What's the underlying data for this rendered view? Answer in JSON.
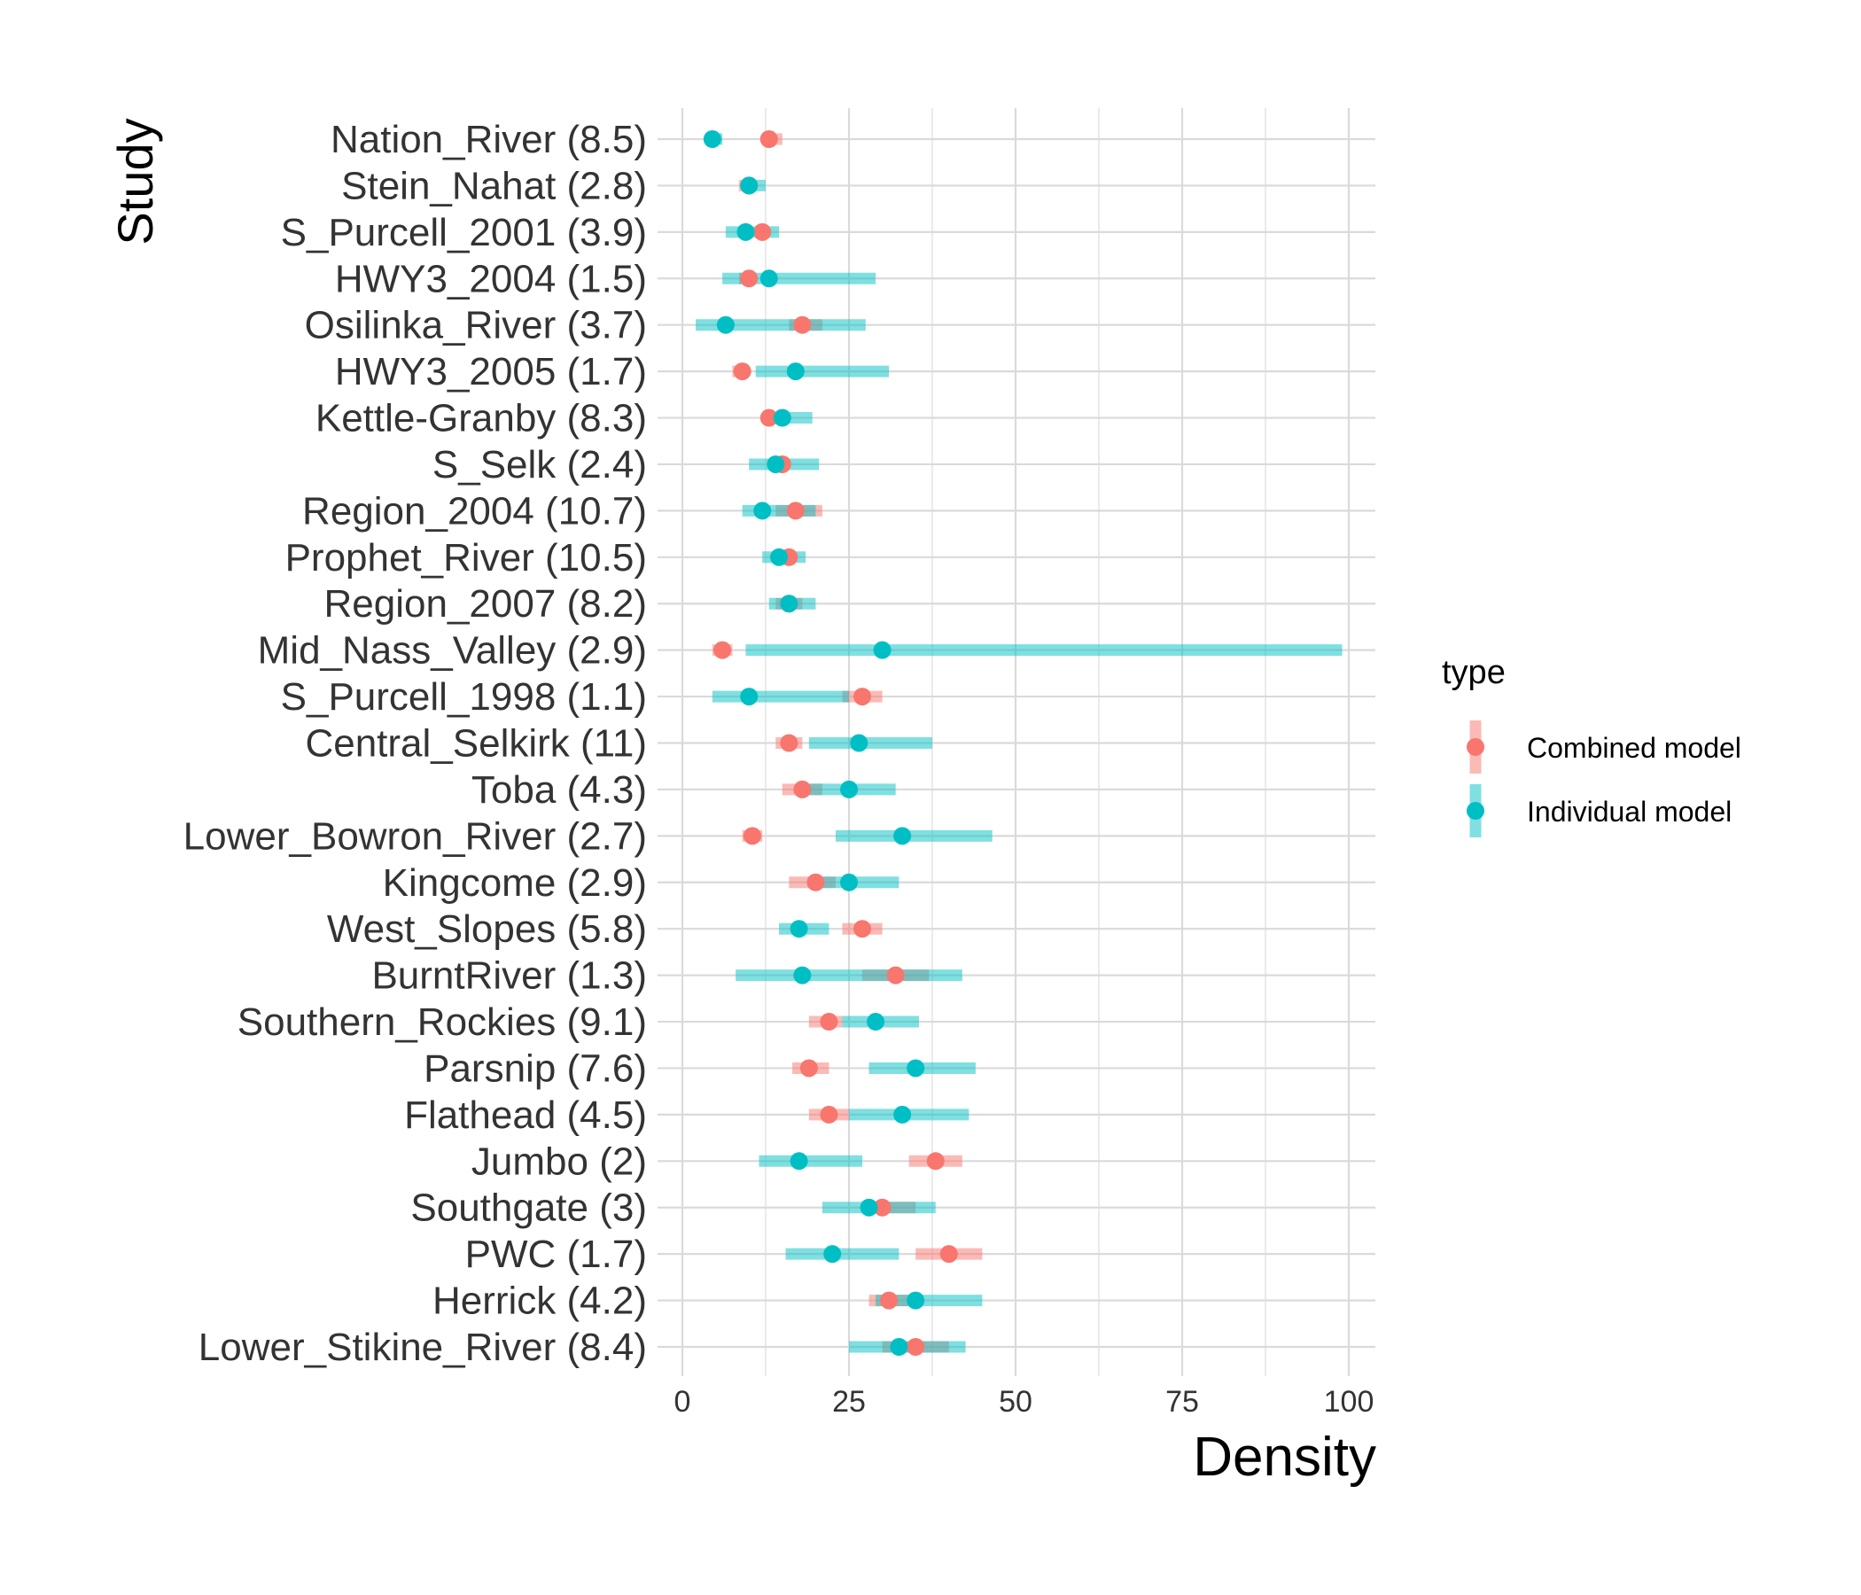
{
  "colors": {
    "combined": "#F8766D",
    "individual": "#00BFC4",
    "grid": "#DADADA"
  },
  "chart_data": {
    "type": "scatter",
    "title": "",
    "xlabel": "Density",
    "ylabel": "Study",
    "xlim": [
      0,
      100
    ],
    "xticks": [
      0,
      25,
      50,
      75,
      100
    ],
    "grid": true,
    "legend_position": "right",
    "legend_title": "type",
    "series_names": [
      "Combined model",
      "Individual model"
    ],
    "categories": [
      "Nation_River (8.5)",
      "Stein_Nahat (2.8)",
      "S_Purcell_2001 (3.9)",
      "HWY3_2004 (1.5)",
      "Osilinka_River (3.7)",
      "HWY3_2005 (1.7)",
      "Kettle-Granby (8.3)",
      "S_Selk (2.4)",
      "Region_2004 (10.7)",
      "Prophet_River (10.5)",
      "Region_2007 (8.2)",
      "Mid_Nass_Valley (2.9)",
      "S_Purcell_1998 (1.1)",
      "Central_Selkirk (11)",
      "Toba (4.3)",
      "Lower_Bowron_River (2.7)",
      "Kingcome (2.9)",
      "West_Slopes (5.8)",
      "BurntRiver (1.3)",
      "Southern_Rockies (9.1)",
      "Parsnip (7.6)",
      "Flathead (4.5)",
      "Jumbo (2)",
      "Southgate (3)",
      "PWC (1.7)",
      "Herrick (4.2)",
      "Lower_Stikine_River (8.4)"
    ],
    "series": [
      {
        "name": "Combined model",
        "estimate": [
          13,
          10,
          12,
          10,
          18,
          9,
          13,
          15,
          17,
          16,
          16,
          6,
          27,
          16,
          18,
          10.5,
          20,
          27,
          32,
          22,
          19,
          22,
          38,
          30,
          40,
          31,
          35
        ],
        "lower": [
          12,
          8.5,
          11,
          8.5,
          16,
          7.5,
          12,
          14,
          14,
          14.5,
          14,
          4.5,
          24,
          14,
          15,
          9,
          16,
          24,
          27,
          19,
          16.5,
          19,
          34,
          28,
          35,
          28,
          30
        ],
        "upper": [
          15,
          11,
          13,
          11,
          21,
          10,
          14,
          16,
          21,
          17,
          18,
          7.5,
          30,
          18,
          21,
          12,
          23,
          30,
          37,
          24,
          22,
          25,
          42,
          35,
          45,
          35,
          40
        ]
      },
      {
        "name": "Individual model",
        "estimate": [
          4.5,
          10,
          9.5,
          13,
          6.5,
          17,
          15,
          14,
          12,
          14.5,
          16,
          30,
          10,
          26.5,
          25,
          33,
          25,
          17.5,
          18,
          29,
          35,
          33,
          17.5,
          28,
          22.5,
          35,
          32.5
        ],
        "lower": [
          3.5,
          9,
          6.5,
          6,
          2,
          11,
          13,
          10,
          9,
          12,
          13,
          9.5,
          4.5,
          19,
          19,
          23,
          20,
          14.5,
          8,
          24,
          28,
          25,
          11.5,
          21,
          15.5,
          29,
          25
        ],
        "upper": [
          6,
          12.5,
          14.5,
          29,
          27.5,
          31,
          19.5,
          20.5,
          20,
          18.5,
          20,
          99,
          25,
          37.5,
          32,
          46.5,
          32.5,
          22,
          42,
          35.5,
          44,
          43,
          27,
          38,
          32.5,
          45,
          42.5
        ]
      }
    ]
  }
}
